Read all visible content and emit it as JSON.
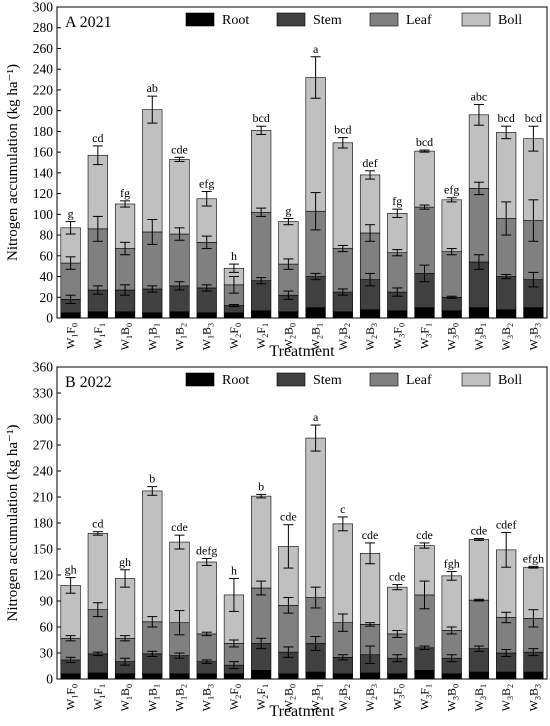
{
  "legend": [
    {
      "label": "Root",
      "color": "#000000"
    },
    {
      "label": "Stem",
      "color": "#404040"
    },
    {
      "label": "Leaf",
      "color": "#808080"
    },
    {
      "label": "Boll",
      "color": "#c0c0c0"
    }
  ],
  "chart_data": [
    {
      "type": "bar",
      "stacked": true,
      "title": "A 2021",
      "xlabel": "Treatment",
      "ylabel": "Nitrogen accumulation (kg ha⁻¹)",
      "ylim": [
        0,
        300
      ],
      "ytick_step": 20,
      "categories": [
        {
          "base": "W",
          "sub1": "1",
          "mid": "F",
          "sub2": "0"
        },
        {
          "base": "W",
          "sub1": "1",
          "mid": "F",
          "sub2": "1"
        },
        {
          "base": "W",
          "sub1": "1",
          "mid": "B",
          "sub2": "0"
        },
        {
          "base": "W",
          "sub1": "1",
          "mid": "B",
          "sub2": "1"
        },
        {
          "base": "W",
          "sub1": "1",
          "mid": "B",
          "sub2": "2"
        },
        {
          "base": "W",
          "sub1": "1",
          "mid": "B",
          "sub2": "3"
        },
        {
          "base": "W",
          "sub1": "2",
          "mid": "F",
          "sub2": "0"
        },
        {
          "base": "W",
          "sub1": "2",
          "mid": "F",
          "sub2": "1"
        },
        {
          "base": "W",
          "sub1": "2",
          "mid": "B",
          "sub2": "0"
        },
        {
          "base": "W",
          "sub1": "2",
          "mid": "B",
          "sub2": "1"
        },
        {
          "base": "W",
          "sub1": "2",
          "mid": "B",
          "sub2": "2"
        },
        {
          "base": "W",
          "sub1": "2",
          "mid": "B",
          "sub2": "3"
        },
        {
          "base": "W",
          "sub1": "3",
          "mid": "F",
          "sub2": "0"
        },
        {
          "base": "W",
          "sub1": "3",
          "mid": "F",
          "sub2": "1"
        },
        {
          "base": "W",
          "sub1": "3",
          "mid": "B",
          "sub2": "0"
        },
        {
          "base": "W",
          "sub1": "3",
          "mid": "B",
          "sub2": "1"
        },
        {
          "base": "W",
          "sub1": "3",
          "mid": "B",
          "sub2": "2"
        },
        {
          "base": "W",
          "sub1": "3",
          "mid": "B",
          "sub2": "3"
        }
      ],
      "series": [
        {
          "name": "Root",
          "values": [
            5,
            6,
            6,
            5,
            6,
            5,
            5,
            7,
            6,
            10,
            6,
            8,
            7,
            10,
            7,
            10,
            8,
            10
          ]
        },
        {
          "name": "Stem",
          "values": [
            13,
            21,
            21,
            23,
            25,
            24,
            7,
            29,
            16,
            30,
            19,
            29,
            18,
            33,
            13,
            44,
            32,
            27
          ]
        },
        {
          "name": "Leaf",
          "values": [
            35,
            59,
            40,
            55,
            50,
            44,
            20,
            66,
            30,
            63,
            42,
            45,
            38,
            64,
            44,
            71,
            56,
            57
          ]
        },
        {
          "name": "Boll",
          "values": [
            34,
            71,
            43,
            118,
            72,
            42,
            16,
            79,
            41,
            129,
            102,
            56,
            38,
            54,
            50,
            71,
            83,
            79
          ]
        }
      ],
      "totals": [
        87,
        157,
        110,
        201,
        153,
        115,
        48,
        181,
        93,
        232,
        169,
        138,
        101,
        161,
        114,
        196,
        179,
        173
      ],
      "errors": {
        "stem": [
          4,
          4,
          5,
          3,
          4,
          3,
          1,
          3,
          4,
          3,
          3,
          6,
          4,
          8,
          1,
          7,
          2,
          7
        ],
        "leaf": [
          6,
          12,
          6,
          12,
          6,
          6,
          8,
          4,
          5,
          18,
          3,
          8,
          3,
          2,
          3,
          6,
          16,
          20
        ],
        "boll": [
          6,
          9,
          3,
          13,
          2,
          7,
          4,
          4,
          3,
          20,
          5,
          4,
          4,
          1,
          2,
          10,
          6,
          12
        ]
      },
      "significance": [
        "g",
        "cd",
        "fg",
        "ab",
        "cde",
        "efg",
        "h",
        "bcd",
        "g",
        "a",
        "bcd",
        "def",
        "fg",
        "bcd",
        "efg",
        "abc",
        "bcd",
        "bcd"
      ]
    },
    {
      "type": "bar",
      "stacked": true,
      "title": "B 2022",
      "xlabel": "Treatment",
      "ylabel": "Nitrogen accumulation (kg ha⁻¹)",
      "ylim": [
        0,
        360
      ],
      "ytick_step": 30,
      "categories": [
        {
          "base": "W",
          "sub1": "1",
          "mid": "F",
          "sub2": "0"
        },
        {
          "base": "W",
          "sub1": "1",
          "mid": "F",
          "sub2": "1"
        },
        {
          "base": "W",
          "sub1": "1",
          "mid": "B",
          "sub2": "0"
        },
        {
          "base": "W",
          "sub1": "1",
          "mid": "B",
          "sub2": "1"
        },
        {
          "base": "W",
          "sub1": "1",
          "mid": "B",
          "sub2": "2"
        },
        {
          "base": "W",
          "sub1": "1",
          "mid": "B",
          "sub2": "3"
        },
        {
          "base": "W",
          "sub1": "2",
          "mid": "F",
          "sub2": "0"
        },
        {
          "base": "W",
          "sub1": "2",
          "mid": "F",
          "sub2": "1"
        },
        {
          "base": "W",
          "sub1": "2",
          "mid": "B",
          "sub2": "0"
        },
        {
          "base": "W",
          "sub1": "2",
          "mid": "B",
          "sub2": "1"
        },
        {
          "base": "W",
          "sub1": "2",
          "mid": "B",
          "sub2": "2"
        },
        {
          "base": "W",
          "sub1": "2",
          "mid": "B",
          "sub2": "3"
        },
        {
          "base": "W",
          "sub1": "3",
          "mid": "F",
          "sub2": "0"
        },
        {
          "base": "W",
          "sub1": "3",
          "mid": "F",
          "sub2": "1"
        },
        {
          "base": "W",
          "sub1": "3",
          "mid": "B",
          "sub2": "0"
        },
        {
          "base": "W",
          "sub1": "3",
          "mid": "B",
          "sub2": "1"
        },
        {
          "base": "W",
          "sub1": "3",
          "mid": "B",
          "sub2": "2"
        },
        {
          "base": "W",
          "sub1": "3",
          "mid": "B",
          "sub2": "3"
        }
      ],
      "series": [
        {
          "name": "Root",
          "values": [
            6,
            7,
            6,
            6,
            6,
            6,
            6,
            10,
            6,
            8,
            6,
            7,
            6,
            10,
            6,
            8,
            8,
            8
          ]
        },
        {
          "name": "Stem",
          "values": [
            16,
            22,
            14,
            23,
            21,
            14,
            10,
            31,
            25,
            33,
            19,
            21,
            18,
            26,
            18,
            27,
            22,
            23
          ]
        },
        {
          "name": "Leaf",
          "values": [
            25,
            51,
            27,
            37,
            38,
            32,
            25,
            64,
            54,
            53,
            40,
            35,
            28,
            61,
            32,
            56,
            41,
            39
          ]
        },
        {
          "name": "Boll",
          "values": [
            61,
            88,
            69,
            151,
            93,
            83,
            56,
            106,
            68,
            184,
            114,
            82,
            54,
            57,
            63,
            70,
            78,
            59
          ]
        }
      ],
      "totals": [
        108,
        168,
        116,
        217,
        158,
        135,
        97,
        211,
        153,
        278,
        179,
        145,
        106,
        154,
        119,
        161,
        149,
        129
      ],
      "errors": {
        "stem": [
          3,
          2,
          4,
          3,
          3,
          2,
          4,
          6,
          6,
          8,
          3,
          10,
          4,
          2,
          4,
          3,
          4,
          4
        ],
        "leaf": [
          3,
          8,
          3,
          6,
          14,
          2,
          4,
          8,
          9,
          12,
          10,
          2,
          4,
          16,
          4,
          1,
          6,
          10
        ],
        "boll": [
          9,
          2,
          10,
          5,
          8,
          4,
          19,
          2,
          25,
          15,
          8,
          12,
          3,
          3,
          5,
          1,
          20,
          1
        ]
      },
      "significance": [
        "gh",
        "cd",
        "gh",
        "b",
        "cde",
        "defg",
        "h",
        "b",
        "cde",
        "a",
        "c",
        "cde",
        "cde",
        "cde",
        "fgh",
        "cde",
        "cdef",
        "efgh"
      ]
    }
  ]
}
